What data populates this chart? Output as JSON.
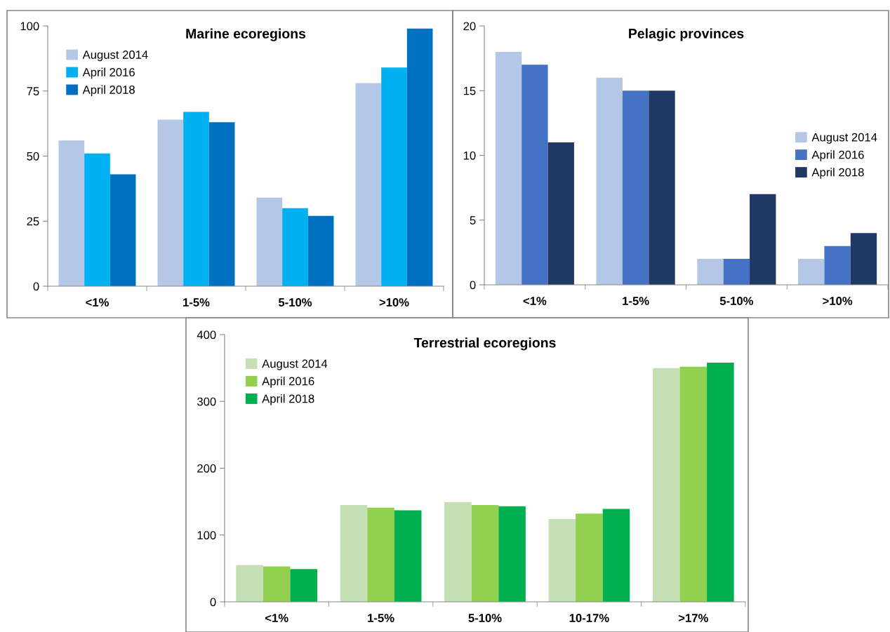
{
  "chart_data": [
    {
      "type": "bar",
      "title": "Marine ecoregions",
      "categories": [
        "<1%",
        "1-5%",
        "5-10%",
        ">10%"
      ],
      "legend": "top left",
      "grid": false,
      "ylim": [
        0,
        100
      ],
      "yticks": [
        0,
        25,
        50,
        75,
        100
      ],
      "series": [
        {
          "name": "August 2014",
          "color": "#b4c7e7",
          "values": [
            56,
            64,
            34,
            78
          ]
        },
        {
          "name": "April 2016",
          "color": "#00b0f0",
          "values": [
            51,
            67,
            30,
            84
          ]
        },
        {
          "name": "April 2018",
          "color": "#0070c0",
          "values": [
            43,
            63,
            27,
            99
          ]
        }
      ]
    },
    {
      "type": "bar",
      "title": "Pelagic provinces",
      "categories": [
        "<1%",
        "1-5%",
        "5-10%",
        ">10%"
      ],
      "legend": "right",
      "grid": false,
      "ylim": [
        0,
        20
      ],
      "yticks": [
        0,
        5,
        10,
        15,
        20
      ],
      "series": [
        {
          "name": "August 2014",
          "color": "#b4c7e7",
          "values": [
            18,
            16,
            2,
            2
          ]
        },
        {
          "name": "April 2016",
          "color": "#4472c4",
          "values": [
            17,
            15,
            2,
            3
          ]
        },
        {
          "name": "April 2018",
          "color": "#203864",
          "values": [
            11,
            15,
            7,
            4
          ]
        }
      ]
    },
    {
      "type": "bar",
      "title": "Terrestrial ecoregions",
      "categories": [
        "<1%",
        "1-5%",
        "5-10%",
        "10-17%",
        ">17%"
      ],
      "legend": "top left",
      "grid": false,
      "ylim": [
        0,
        400
      ],
      "yticks": [
        0,
        100,
        200,
        300,
        400
      ],
      "series": [
        {
          "name": "August 2014",
          "color": "#c5e0b4",
          "values": [
            55,
            145,
            149,
            124,
            350
          ]
        },
        {
          "name": "April 2016",
          "color": "#92d050",
          "values": [
            53,
            141,
            145,
            132,
            352
          ]
        },
        {
          "name": "April 2018",
          "color": "#00b050",
          "values": [
            49,
            137,
            143,
            139,
            358
          ]
        }
      ]
    }
  ]
}
